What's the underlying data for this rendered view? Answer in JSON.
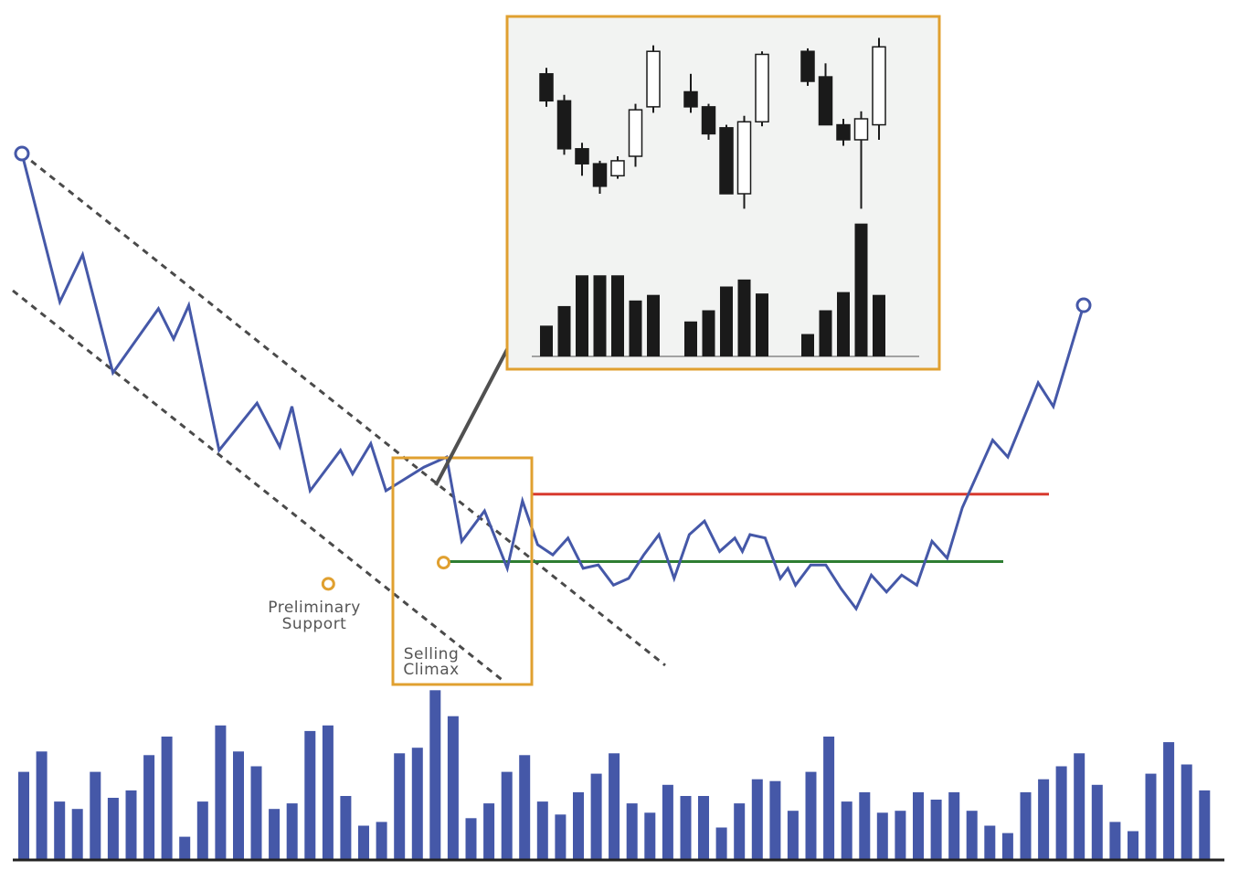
{
  "colors": {
    "price": "#4558a8",
    "accent": "#e0a030",
    "resistance": "#d83a2e",
    "support": "#2e7d32",
    "channel": "#4a4a4a",
    "arrow": "#505050",
    "volume": "#4558a8",
    "inset_bg": "#f2f3f2",
    "inset_candle": "#1a1a1a",
    "annotation_text": "#555555"
  },
  "labels": {
    "preliminary_support": [
      "Preliminary",
      "Support"
    ],
    "selling_climax": [
      "Selling",
      "Climax"
    ]
  },
  "chart_data": {
    "type": "line",
    "price": [
      [
        0,
        100
      ],
      [
        2.5,
        56
      ],
      [
        4,
        70
      ],
      [
        6,
        35
      ],
      [
        9,
        54
      ],
      [
        10,
        45
      ],
      [
        11,
        55
      ],
      [
        13,
        12
      ],
      [
        15.5,
        26
      ],
      [
        17,
        13
      ],
      [
        17.8,
        25
      ],
      [
        19,
        0
      ],
      [
        21,
        12
      ],
      [
        21.8,
        5
      ],
      [
        23,
        14
      ],
      [
        24,
        0
      ],
      [
        26.5,
        7
      ],
      [
        28,
        10
      ],
      [
        29,
        -15
      ],
      [
        30.5,
        -6
      ],
      [
        32,
        -23
      ],
      [
        33,
        -3
      ],
      [
        34,
        -16
      ],
      [
        35,
        -19
      ],
      [
        36,
        -14
      ],
      [
        37,
        -23
      ],
      [
        38,
        -22
      ],
      [
        39,
        -28
      ],
      [
        40,
        -26
      ],
      [
        41,
        -19
      ],
      [
        42,
        -13
      ],
      [
        43,
        -26
      ],
      [
        44,
        -13
      ],
      [
        45,
        -9
      ],
      [
        46,
        -18
      ],
      [
        47,
        -14
      ],
      [
        47.5,
        -18
      ],
      [
        48,
        -13
      ],
      [
        49,
        -14
      ],
      [
        50,
        -26
      ],
      [
        50.5,
        -23
      ],
      [
        51,
        -28
      ],
      [
        52,
        -22
      ],
      [
        53,
        -22
      ],
      [
        54,
        -29
      ],
      [
        55,
        -35
      ],
      [
        56,
        -25
      ],
      [
        57,
        -30
      ],
      [
        58,
        -25
      ],
      [
        59,
        -28
      ],
      [
        60,
        -15
      ],
      [
        61,
        -20
      ],
      [
        62,
        -5
      ],
      [
        64,
        15
      ],
      [
        65,
        10
      ],
      [
        67,
        32
      ],
      [
        68,
        25
      ],
      [
        70,
        55
      ]
    ],
    "volume": [
      47,
      58,
      31,
      27,
      47,
      33,
      37,
      56,
      66,
      12,
      31,
      72,
      58,
      50,
      27,
      30,
      69,
      72,
      34,
      18,
      20,
      57,
      60,
      91,
      77,
      22,
      30,
      47,
      56,
      31,
      24,
      36,
      46,
      57,
      30,
      25,
      40,
      34,
      34,
      17,
      30,
      43,
      42,
      26,
      47,
      66,
      31,
      36,
      25,
      26,
      36,
      32,
      36,
      26,
      18,
      14,
      36,
      43,
      50,
      57,
      40,
      20,
      15,
      46,
      63,
      51,
      37
    ],
    "resistance_level": -1,
    "support_level": -21,
    "inset": {
      "patterns": [
        {
          "candles": [
            {
              "open": 80,
              "close": 62,
              "high": 84,
              "low": 58
            },
            {
              "open": 62,
              "close": 30,
              "high": 66,
              "low": 26
            },
            {
              "open": 30,
              "close": 20,
              "high": 34,
              "low": 12
            },
            {
              "open": 20,
              "close": 5,
              "high": 22,
              "low": 0
            },
            {
              "open": 12,
              "close": 22,
              "high": 25,
              "low": 10
            },
            {
              "open": 25,
              "close": 56,
              "high": 60,
              "low": 18
            },
            {
              "open": 58,
              "close": 95,
              "high": 99,
              "low": 54
            }
          ],
          "volume": [
            22,
            36,
            58,
            58,
            58,
            40,
            44
          ]
        },
        {
          "candles": [
            {
              "open": 68,
              "close": 58,
              "high": 80,
              "low": 54
            },
            {
              "open": 58,
              "close": 40,
              "high": 60,
              "low": 36
            },
            {
              "open": 44,
              "close": 0,
              "high": 46,
              "low": 0
            },
            {
              "open": 0,
              "close": 48,
              "high": 52,
              "low": -10
            },
            {
              "open": 48,
              "close": 93,
              "high": 95,
              "low": 45
            }
          ],
          "volume": [
            25,
            33,
            50,
            55,
            45
          ]
        },
        {
          "candles": [
            {
              "open": 95,
              "close": 75,
              "high": 97,
              "low": 72
            },
            {
              "open": 78,
              "close": 46,
              "high": 87,
              "low": 46
            },
            {
              "open": 46,
              "close": 36,
              "high": 50,
              "low": 32
            },
            {
              "open": 36,
              "close": 50,
              "high": 55,
              "low": -10
            },
            {
              "open": 46,
              "close": 98,
              "high": 104,
              "low": 36
            }
          ],
          "volume": [
            16,
            33,
            46,
            95,
            44
          ]
        }
      ]
    }
  }
}
